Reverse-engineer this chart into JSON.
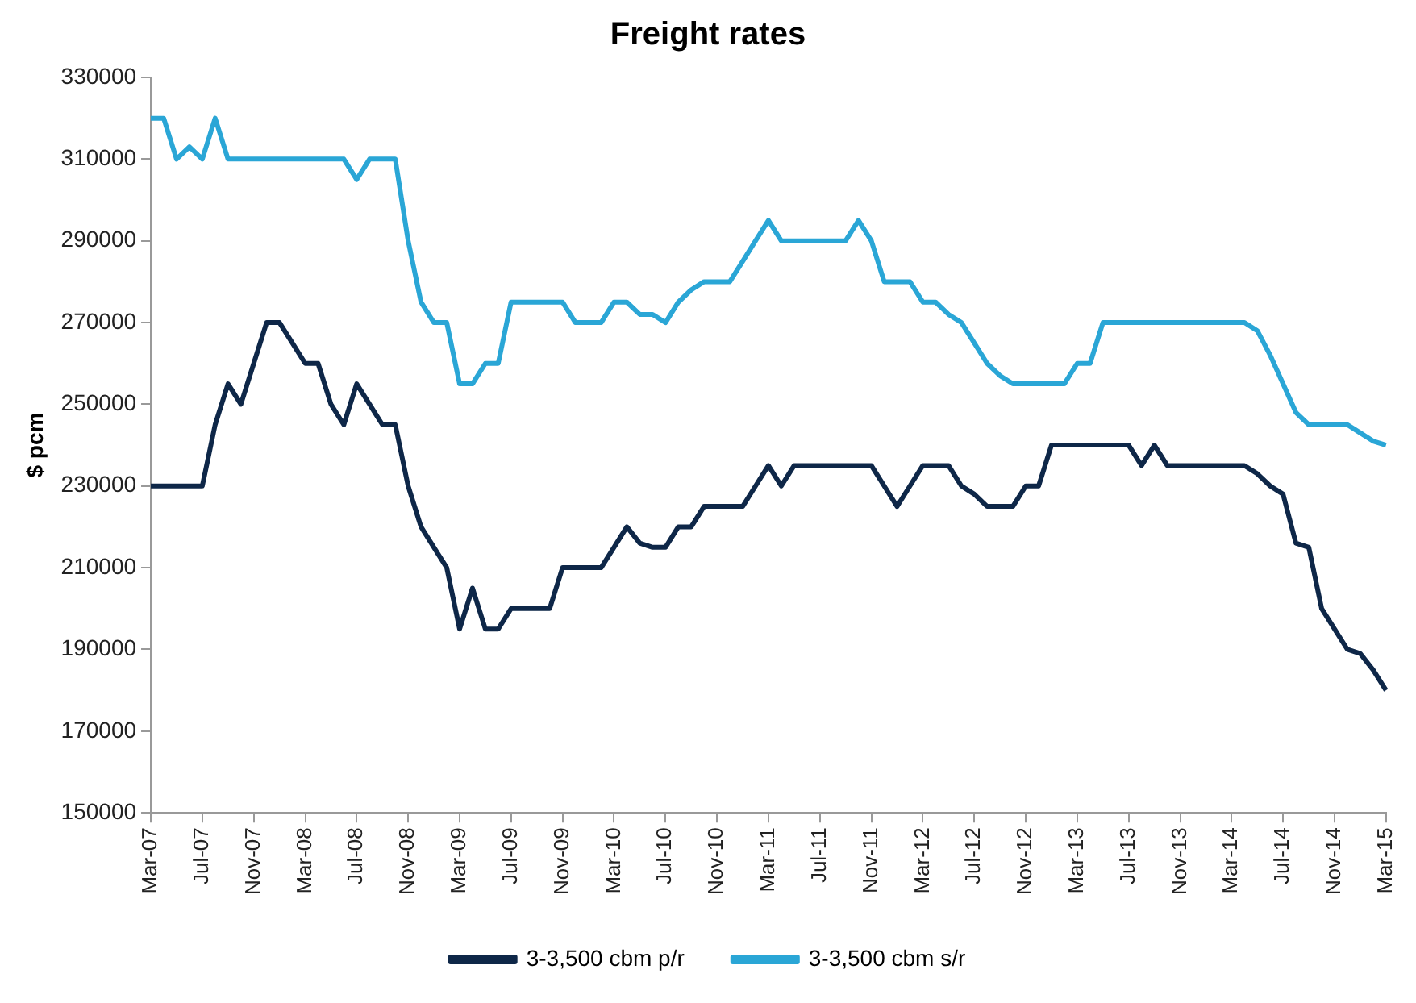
{
  "chart_data": {
    "type": "line",
    "title": "Freight rates",
    "ylabel": "$ pcm",
    "categories": [
      "Mar-07",
      null,
      null,
      null,
      "Jul-07",
      null,
      null,
      null,
      "Nov-07",
      null,
      null,
      null,
      "Mar-08",
      null,
      null,
      null,
      "Jul-08",
      null,
      null,
      null,
      "Nov-08",
      null,
      null,
      null,
      "Mar-09",
      null,
      null,
      null,
      "Jul-09",
      null,
      null,
      null,
      "Nov-09",
      null,
      null,
      null,
      "Mar-10",
      null,
      null,
      null,
      "Jul-10",
      null,
      null,
      null,
      "Nov-10",
      null,
      null,
      null,
      "Mar-11",
      null,
      null,
      null,
      "Jul-11",
      null,
      null,
      null,
      "Nov-11",
      null,
      null,
      null,
      "Mar-12",
      null,
      null,
      null,
      "Jul-12",
      null,
      null,
      null,
      "Nov-12",
      null,
      null,
      null,
      "Mar-13",
      null,
      null,
      null,
      "Jul-13",
      null,
      null,
      null,
      "Nov-13",
      null,
      null,
      null,
      "Mar-14",
      null,
      null,
      null,
      "Jul-14",
      null,
      null,
      null,
      "Nov-14",
      null,
      null,
      null,
      "Mar-15"
    ],
    "series": [
      {
        "name": "3-3,500 cbm p/r",
        "color": "#0e2748",
        "values": [
          230000,
          230000,
          230000,
          230000,
          230000,
          245000,
          255000,
          250000,
          260000,
          270000,
          270000,
          265000,
          260000,
          260000,
          250000,
          245000,
          255000,
          250000,
          245000,
          245000,
          230000,
          220000,
          215000,
          210000,
          195000,
          205000,
          195000,
          195000,
          200000,
          200000,
          200000,
          200000,
          210000,
          210000,
          210000,
          210000,
          215000,
          220000,
          216000,
          215000,
          215000,
          220000,
          220000,
          225000,
          225000,
          225000,
          225000,
          230000,
          235000,
          230000,
          235000,
          235000,
          235000,
          235000,
          235000,
          235000,
          235000,
          230000,
          225000,
          230000,
          235000,
          235000,
          235000,
          230000,
          228000,
          225000,
          225000,
          225000,
          230000,
          230000,
          240000,
          240000,
          240000,
          240000,
          240000,
          240000,
          240000,
          235000,
          240000,
          235000,
          235000,
          235000,
          235000,
          235000,
          235000,
          235000,
          233000,
          230000,
          228000,
          216000,
          215000,
          200000,
          195000,
          190000,
          189000,
          185000,
          180000
        ]
      },
      {
        "name": "3-3,500 cbm s/r",
        "color": "#2aa6d6",
        "values": [
          320000,
          320000,
          310000,
          313000,
          310000,
          320000,
          310000,
          310000,
          310000,
          310000,
          310000,
          310000,
          310000,
          310000,
          310000,
          310000,
          305000,
          310000,
          310000,
          310000,
          290000,
          275000,
          270000,
          270000,
          255000,
          255000,
          260000,
          260000,
          275000,
          275000,
          275000,
          275000,
          275000,
          270000,
          270000,
          270000,
          275000,
          275000,
          272000,
          272000,
          270000,
          275000,
          278000,
          280000,
          280000,
          280000,
          285000,
          290000,
          295000,
          290000,
          290000,
          290000,
          290000,
          290000,
          290000,
          295000,
          290000,
          280000,
          280000,
          280000,
          275000,
          275000,
          272000,
          270000,
          265000,
          260000,
          257000,
          255000,
          255000,
          255000,
          255000,
          255000,
          260000,
          260000,
          270000,
          270000,
          270000,
          270000,
          270000,
          270000,
          270000,
          270000,
          270000,
          270000,
          270000,
          270000,
          268000,
          262000,
          255000,
          248000,
          245000,
          245000,
          245000,
          245000,
          243000,
          241000,
          240000
        ]
      }
    ],
    "ylim": [
      150000,
      330000
    ],
    "yticks": [
      150000,
      170000,
      190000,
      210000,
      230000,
      250000,
      270000,
      290000,
      310000,
      330000
    ],
    "grid": false,
    "legend": "bottom",
    "marker": "none",
    "line_style": "solid"
  }
}
